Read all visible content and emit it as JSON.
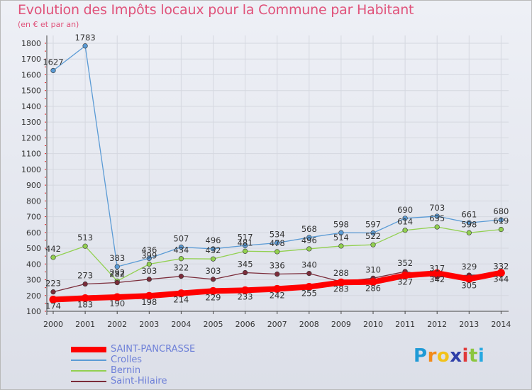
{
  "chart_data": {
    "type": "line",
    "title": "Evolution des Impôts locaux pour la Commune par Habitant",
    "subtitle": "(en € et par an)",
    "categories": [
      "2000",
      "2001",
      "2002",
      "2003",
      "2004",
      "2005",
      "2006",
      "2007",
      "2008",
      "2009",
      "2010",
      "2011",
      "2012",
      "2013",
      "2014"
    ],
    "ylim": [
      100,
      1800
    ],
    "yticks": [
      100,
      200,
      300,
      400,
      500,
      600,
      700,
      800,
      900,
      1000,
      1100,
      1200,
      1300,
      1400,
      1500,
      1600,
      1700,
      1800
    ],
    "series": [
      {
        "name": "SAINT-PANCRASSE",
        "color": "#ff0000",
        "values": [
          174,
          183,
          190,
          198,
          214,
          229,
          233,
          242,
          255,
          283,
          286,
          327,
          342,
          305,
          344
        ]
      },
      {
        "name": "Crolles",
        "color": "#5b9bd5",
        "values": [
          1627,
          1783,
          383,
          436,
          507,
          496,
          517,
          534,
          568,
          598,
          597,
          690,
          703,
          661,
          680
        ]
      },
      {
        "name": "Bernin",
        "color": "#92d050",
        "values": [
          442,
          513,
          292,
          399,
          434,
          432,
          481,
          478,
          496,
          514,
          522,
          614,
          635,
          598,
          619
        ]
      },
      {
        "name": "Saint-Hilaire",
        "color": "#7b2c3a",
        "values": [
          223,
          273,
          282,
          303,
          322,
          303,
          345,
          336,
          340,
          288,
          310,
          352,
          317,
          329,
          332
        ]
      }
    ]
  },
  "logo": {
    "letters": [
      "P",
      "r",
      "o",
      "x",
      "i",
      "t",
      "i"
    ],
    "colors": [
      "#1f9ad6",
      "#f28a1a",
      "#f2c21a",
      "#2e3fa8",
      "#e03a3a",
      "#8cc63f",
      "#27a9e1"
    ]
  }
}
